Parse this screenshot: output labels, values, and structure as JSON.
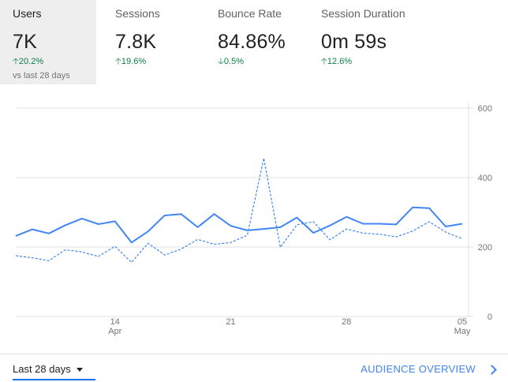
{
  "tabs": [
    {
      "label": "Users",
      "value": "7K",
      "delta": "20.2%",
      "direction": "up",
      "sub": "vs last 28 days",
      "active": true
    },
    {
      "label": "Sessions",
      "value": "7.8K",
      "delta": "19.6%",
      "direction": "up",
      "active": false
    },
    {
      "label": "Bounce Rate",
      "value": "84.86%",
      "delta": "0.5%",
      "direction": "down",
      "active": false
    },
    {
      "label": "Session Duration",
      "value": "0m 59s",
      "delta": "12.6%",
      "direction": "up",
      "active": false
    }
  ],
  "chart_data": {
    "type": "line",
    "ylim": [
      0,
      600
    ],
    "yticks": [
      0,
      200,
      400,
      600
    ],
    "xticks": [
      {
        "index": 6,
        "label": "14",
        "sublabel": "Apr"
      },
      {
        "index": 13,
        "label": "21",
        "sublabel": ""
      },
      {
        "index": 20,
        "label": "28",
        "sublabel": ""
      },
      {
        "index": 27,
        "label": "05",
        "sublabel": "May"
      }
    ],
    "colors": {
      "series": "#4285f4",
      "grid": "#e0e0e0",
      "axis_text": "#757575"
    },
    "series": [
      {
        "style": "solid",
        "values": [
          232,
          251,
          239,
          263,
          282,
          266,
          274,
          213,
          245,
          291,
          295,
          257,
          295,
          261,
          248,
          252,
          257,
          285,
          241,
          262,
          287,
          267,
          267,
          265,
          314,
          312,
          259,
          267
        ]
      },
      {
        "style": "dashed",
        "values": [
          175,
          169,
          161,
          192,
          186,
          173,
          202,
          156,
          211,
          177,
          194,
          222,
          208,
          213,
          234,
          456,
          199,
          264,
          273,
          221,
          252,
          240,
          237,
          229,
          246,
          273,
          243,
          224
        ]
      }
    ]
  },
  "footer": {
    "range_label": "Last 28 days",
    "link_label": "AUDIENCE OVERVIEW"
  }
}
